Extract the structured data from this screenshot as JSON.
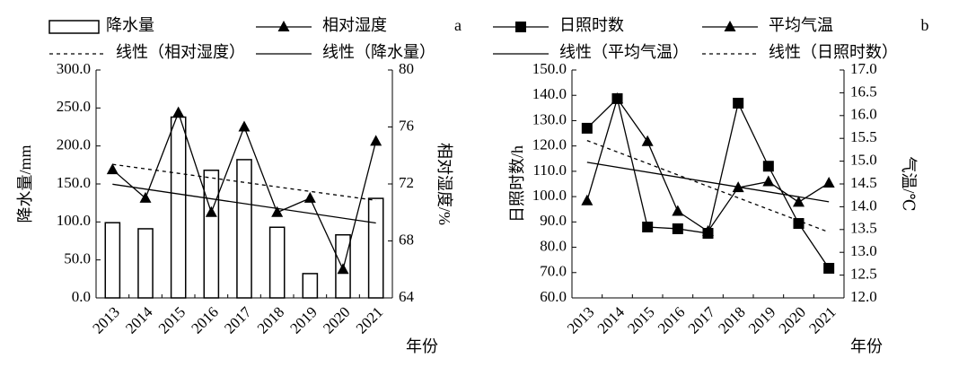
{
  "chart_data": [
    {
      "type": "combo",
      "panel": "a",
      "categories": [
        "2013",
        "2014",
        "2015",
        "2016",
        "2017",
        "2018",
        "2019",
        "2020",
        "2021"
      ],
      "xlabel": "年份",
      "ylabel": "降水量/mm",
      "y2label": "相对湿度/%",
      "ylim": [
        0,
        300
      ],
      "yticks": [
        {
          "value": 0,
          "label": "0.0"
        },
        {
          "value": 50,
          "label": "50.0"
        },
        {
          "value": 100,
          "label": "100.0"
        },
        {
          "value": 150,
          "label": "150.0"
        },
        {
          "value": 200,
          "label": "200.0"
        },
        {
          "value": 250,
          "label": "250.0"
        },
        {
          "value": 300,
          "label": "300.0"
        }
      ],
      "y2lim": [
        64,
        80
      ],
      "y2ticks": [
        64,
        68,
        72,
        76,
        80
      ],
      "series": [
        {
          "name": "降水量",
          "type": "bar",
          "color": "#000000",
          "values": [
            99,
            91,
            238,
            168,
            182,
            93,
            32,
            83,
            131
          ]
        },
        {
          "name": "相对湿度",
          "type": "line",
          "marker": "triangle",
          "axis": "y2",
          "color": "#000000",
          "values": [
            73,
            71,
            77,
            70,
            76,
            70,
            71,
            66,
            75
          ]
        }
      ],
      "trendlines": [
        {
          "name": "线性（相对湿度）",
          "of": 1,
          "style": "dashed"
        },
        {
          "name": "线性（降水量）",
          "of": 0,
          "style": "solid"
        }
      ]
    },
    {
      "type": "combo",
      "panel": "b",
      "categories": [
        "2013",
        "2014",
        "2015",
        "2016",
        "2017",
        "2018",
        "2019",
        "2020",
        "2021"
      ],
      "xlabel": "年份",
      "ylabel": "日照时数/h",
      "y2label": "气温/℃",
      "ylim": [
        60,
        150
      ],
      "yticks": [
        {
          "value": 60,
          "label": "60.0"
        },
        {
          "value": 70,
          "label": "70.0"
        },
        {
          "value": 80,
          "label": "80.0"
        },
        {
          "value": 90,
          "label": "90.0"
        },
        {
          "value": 100,
          "label": "100.0"
        },
        {
          "value": 110,
          "label": "110.0"
        },
        {
          "value": 120,
          "label": "120.0"
        },
        {
          "value": 130,
          "label": "130.0"
        },
        {
          "value": 140,
          "label": "140.0"
        },
        {
          "value": 150,
          "label": "150.0"
        }
      ],
      "y2lim": [
        12,
        17
      ],
      "y2ticks": [
        {
          "value": 12,
          "label": "12.0"
        },
        12.5,
        {
          "value": 13,
          "label": "13.0"
        },
        13.5,
        {
          "value": 14,
          "label": "14.0"
        },
        14.5,
        {
          "value": 15,
          "label": "15.0"
        },
        15.5,
        {
          "value": 16,
          "label": "16.0"
        },
        16.5,
        {
          "value": 17,
          "label": "17.0"
        }
      ],
      "series": [
        {
          "name": "日照时数",
          "type": "line",
          "marker": "square",
          "color": "#000000",
          "values": [
            127,
            138.7,
            88,
            87.3,
            85.5,
            136.9,
            112,
            89.4,
            71.7
          ]
        },
        {
          "name": "平均气温",
          "type": "line",
          "marker": "triangle",
          "axis": "y2",
          "color": "#000000",
          "values": [
            14.13,
            16.37,
            15.43,
            13.9,
            13.46,
            14.42,
            14.55,
            14.1,
            14.52
          ]
        }
      ],
      "trendlines": [
        {
          "name": "线性（平均气温）",
          "of": 1,
          "style": "solid"
        },
        {
          "name": "线性（日照时数）",
          "of": 0,
          "style": "dashed"
        }
      ]
    }
  ]
}
